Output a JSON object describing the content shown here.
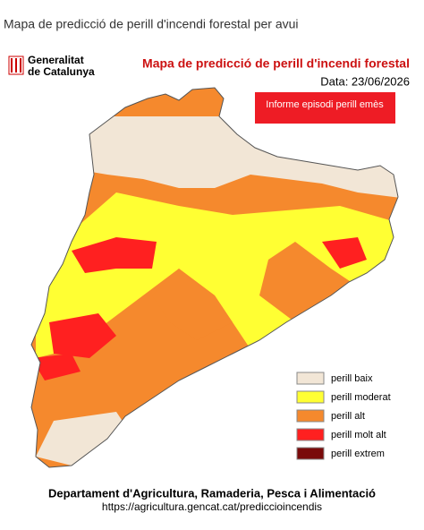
{
  "header": {
    "title": "Mapa de predicció de perill d'incendi forestal per avui"
  },
  "logo": {
    "line1": "Generalitat",
    "line2": "de Catalunya"
  },
  "map": {
    "title": "Mapa de predicció de perill d'incendi forestal",
    "date": "Data: 23/06/2026",
    "button": "Informe episodi perill emès"
  },
  "legend": [
    {
      "label": "perill baix",
      "color": "#f2e6d6"
    },
    {
      "label": "perill moderat",
      "color": "#ffff33"
    },
    {
      "label": "perill alt",
      "color": "#f5892d"
    },
    {
      "label": "perill molt alt",
      "color": "#ff2020"
    },
    {
      "label": "perill extrem",
      "color": "#7a0a0a"
    }
  ],
  "footer": {
    "department": "Departament d'Agricultura, Ramaderia, Pesca i Alimentació",
    "url": "https://agricultura.gencat.cat/prediccioincendis"
  }
}
